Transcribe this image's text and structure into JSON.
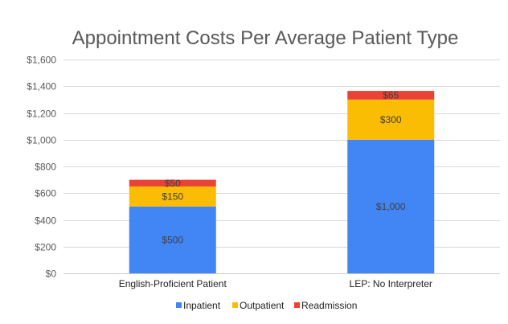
{
  "chart_data": {
    "type": "bar",
    "stacked": true,
    "title": "Appointment Costs Per Average Patient Type",
    "xlabel": "",
    "ylabel": "",
    "ylim": [
      0,
      1600
    ],
    "yticks": [
      0,
      200,
      400,
      600,
      800,
      1000,
      1200,
      1400,
      1600
    ],
    "ytick_labels": [
      "$0",
      "$200",
      "$400",
      "$600",
      "$800",
      "$1,000",
      "$1,200",
      "$1,400",
      "$1,600"
    ],
    "grid": true,
    "categories": [
      "English-Proficient Patient",
      "LEP: No Interpreter"
    ],
    "series": [
      {
        "name": "Inpatient",
        "color": "#4285f4",
        "values": [
          500,
          1000
        ],
        "labels": [
          "$500",
          "$1,000"
        ]
      },
      {
        "name": "Outpatient",
        "color": "#fbbc04",
        "values": [
          150,
          300
        ],
        "labels": [
          "$150",
          "$300"
        ]
      },
      {
        "name": "Readmission",
        "color": "#ea4335",
        "values": [
          50,
          65
        ],
        "labels": [
          "$50",
          "$65"
        ]
      }
    ],
    "legend_position": "bottom"
  }
}
